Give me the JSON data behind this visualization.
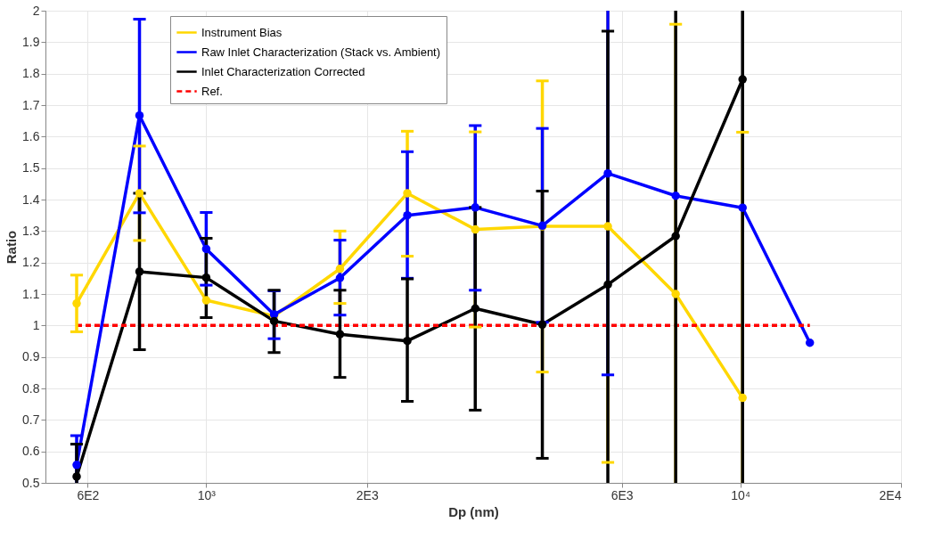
{
  "chart_data": {
    "type": "line",
    "xlabel": "Dp (nm)",
    "ylabel": "Ratio",
    "log": "x",
    "grid": true,
    "legend": "top left",
    "marker": "circle",
    "line_style": "solid",
    "x": [
      572,
      750,
      1000,
      1340,
      1780,
      2380,
      3190,
      4260,
      5650,
      7570,
      10100,
      13500
    ],
    "xlim": [
      500,
      20000
    ],
    "xticks": [
      {
        "value": 600,
        "label": "6E2"
      },
      {
        "value": 1000,
        "label": "10³"
      },
      {
        "value": 2000,
        "label": "2E3"
      },
      {
        "value": 6000,
        "label": "6E3"
      },
      {
        "value": 10000,
        "label": "10⁴"
      },
      {
        "value": 20000,
        "label": "2E4"
      }
    ],
    "ylim": [
      0.5,
      2
    ],
    "yticks": [
      0.5,
      0.6,
      0.7,
      0.8,
      0.9,
      1,
      1.1,
      1.2,
      1.3,
      1.4,
      1.5,
      1.6,
      1.7,
      1.8,
      1.9,
      2
    ],
    "series": [
      {
        "name": "Instrument Bias",
        "color": "#ffd700",
        "values": [
          1.07,
          1.42,
          1.08,
          1.03,
          1.18,
          1.42,
          1.305,
          1.315,
          1.315,
          1.1,
          0.77,
          null
        ],
        "errors": [
          [
            0.98,
            1.16
          ],
          [
            1.27,
            1.57
          ],
          null,
          null,
          [
            1.07,
            1.3
          ],
          [
            1.22,
            1.617
          ],
          [
            0.995,
            1.615
          ],
          [
            0.852,
            1.777
          ],
          [
            0.565,
            2
          ],
          [
            0.5,
            1.957
          ],
          [
            0.5,
            1.614
          ],
          null
        ]
      },
      {
        "name": "Raw Inlet Characterization (Stack vs. Ambient)",
        "color": "#0000ff",
        "values": [
          0.557,
          1.667,
          1.243,
          1.035,
          1.151,
          1.35,
          1.375,
          1.317,
          1.483,
          1.412,
          1.374,
          0.945
        ],
        "errors": [
          [
            0.5,
            0.65
          ],
          [
            1.358,
            1.973
          ],
          [
            1.128,
            1.359
          ],
          [
            0.958,
            1.11
          ],
          [
            1.033,
            1.271
          ],
          [
            1.15,
            1.552
          ],
          [
            1.112,
            1.635
          ],
          [
            1.01,
            1.626
          ],
          [
            0.843,
            2
          ],
          null,
          null,
          null
        ]
      },
      {
        "name": "Inlet Characterization Corrected",
        "color": "#000000",
        "values": [
          0.52,
          1.171,
          1.152,
          1.014,
          0.972,
          0.951,
          1.054,
          1.003,
          1.13,
          1.284,
          1.782,
          null
        ],
        "errors": [
          [
            0.5,
            0.623
          ],
          [
            0.923,
            1.42
          ],
          [
            1.025,
            1.277
          ],
          [
            0.914,
            1.112
          ],
          [
            0.835,
            1.112
          ],
          [
            0.759,
            1.148
          ],
          [
            0.731,
            1.375
          ],
          [
            0.578,
            1.427
          ],
          [
            0.5,
            1.935
          ],
          [
            0.5,
            2
          ],
          [
            0.5,
            2
          ],
          null
        ]
      }
    ],
    "ref_lines": [
      {
        "axis": "y",
        "value": 1,
        "label": "Ref.",
        "color": "#ff0000",
        "line_style": "dashed"
      }
    ]
  }
}
